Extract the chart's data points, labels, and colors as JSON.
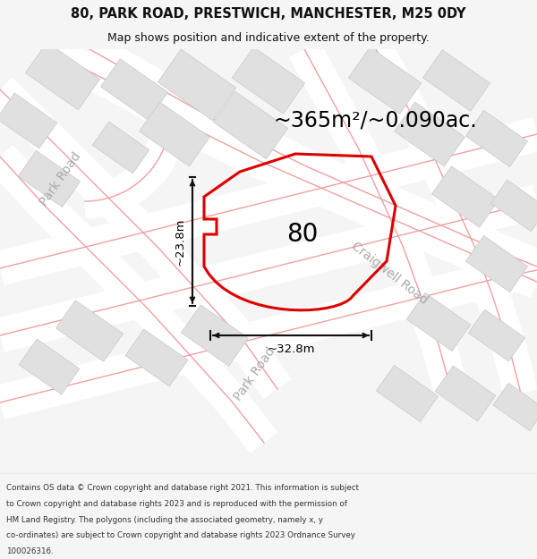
{
  "title_line1": "80, PARK ROAD, PRESTWICH, MANCHESTER, M25 0DY",
  "title_line2": "Map shows position and indicative extent of the property.",
  "area_text": "~365m²/~0.090ac.",
  "label_number": "80",
  "dim_vertical": "~23.8m",
  "dim_horizontal": "~32.8m",
  "road_label_left": "Park Road",
  "road_label_right": "Craigwell Road",
  "copyright_lines": [
    "Contains OS data © Crown copyright and database right 2021. This information is subject",
    "to Crown copyright and database rights 2023 and is reproduced with the permission of",
    "HM Land Registry. The polygons (including the associated geometry, namely x, y",
    "co-ordinates) are subject to Crown copyright and database rights 2023 Ordnance Survey",
    "100026316."
  ],
  "bg_color": "#f5f5f5",
  "map_bg": "#ffffff",
  "building_color": "#e0e0e0",
  "building_edge": "#c8c8c8",
  "road_line_color": "#f0a0a0",
  "property_color": "#dd0000",
  "dim_color": "#111111",
  "road_label_color": "#aaaaaa",
  "title_color": "#111111"
}
